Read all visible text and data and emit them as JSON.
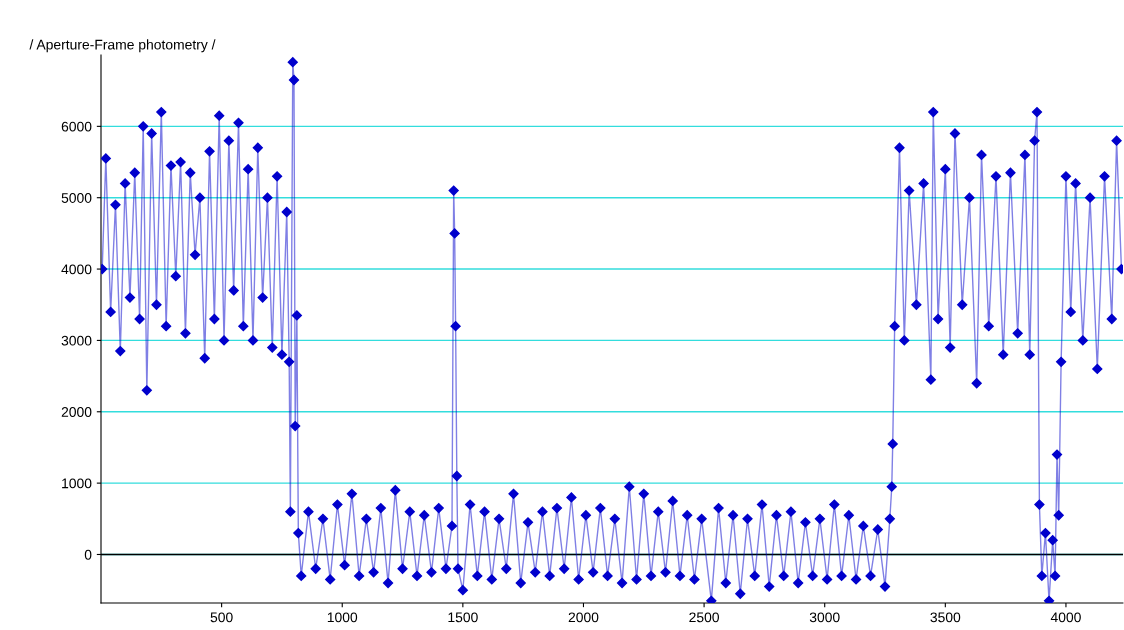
{
  "chart_data": {
    "type": "line",
    "title": "/ Aperture-Frame photometry /",
    "x": [
      5,
      20,
      40,
      60,
      80,
      100,
      120,
      140,
      160,
      175,
      190,
      210,
      230,
      250,
      270,
      290,
      310,
      330,
      350,
      370,
      390,
      410,
      430,
      450,
      470,
      490,
      510,
      530,
      550,
      570,
      590,
      610,
      630,
      650,
      670,
      690,
      710,
      730,
      750,
      770,
      780,
      785,
      795,
      800,
      805,
      812,
      818,
      830,
      860,
      890,
      920,
      950,
      980,
      1010,
      1040,
      1070,
      1100,
      1130,
      1160,
      1190,
      1220,
      1250,
      1280,
      1310,
      1340,
      1370,
      1400,
      1430,
      1455,
      1462,
      1466,
      1470,
      1475,
      1480,
      1500,
      1530,
      1560,
      1590,
      1620,
      1650,
      1680,
      1710,
      1740,
      1770,
      1800,
      1830,
      1860,
      1890,
      1920,
      1950,
      1980,
      2010,
      2040,
      2070,
      2100,
      2130,
      2160,
      2190,
      2220,
      2250,
      2280,
      2310,
      2340,
      2370,
      2400,
      2430,
      2460,
      2490,
      2530,
      2560,
      2590,
      2620,
      2650,
      2680,
      2710,
      2740,
      2770,
      2800,
      2830,
      2860,
      2890,
      2920,
      2950,
      2980,
      3010,
      3040,
      3070,
      3100,
      3130,
      3160,
      3190,
      3220,
      3250,
      3270,
      3278,
      3282,
      3290,
      3310,
      3330,
      3350,
      3380,
      3410,
      3440,
      3450,
      3470,
      3500,
      3520,
      3540,
      3570,
      3600,
      3630,
      3650,
      3680,
      3710,
      3740,
      3770,
      3800,
      3830,
      3850,
      3870,
      3880,
      3890,
      3900,
      3915,
      3930,
      3945,
      3955,
      3963,
      3970,
      3980,
      4000,
      4020,
      4040,
      4070,
      4100,
      4130,
      4160,
      4190,
      4210,
      4230
    ],
    "series": [
      {
        "color": "#0000cc",
        "values": [
          4000,
          5550,
          3400,
          4900,
          2850,
          5200,
          3600,
          5350,
          3300,
          6000,
          2300,
          5900,
          3500,
          6200,
          3200,
          5450,
          3900,
          5500,
          3100,
          5350,
          4200,
          5000,
          2750,
          5650,
          3300,
          6150,
          3000,
          5800,
          3700,
          6050,
          3200,
          5400,
          3000,
          5700,
          3600,
          5000,
          2900,
          5300,
          2800,
          4800,
          2700,
          600,
          6900,
          6650,
          1800,
          3350,
          300,
          -300,
          600,
          -200,
          500,
          -350,
          700,
          -150,
          850,
          -300,
          500,
          -250,
          650,
          -400,
          900,
          -200,
          600,
          -300,
          550,
          -250,
          650,
          -200,
          400,
          5100,
          4500,
          3200,
          1100,
          -200,
          -500,
          700,
          -300,
          600,
          -350,
          500,
          -200,
          850,
          -400,
          450,
          -250,
          600,
          -300,
          650,
          -200,
          800,
          -350,
          550,
          -250,
          650,
          -300,
          500,
          -400,
          950,
          -350,
          850,
          -300,
          600,
          -250,
          750,
          -300,
          550,
          -350,
          500,
          -650,
          650,
          -400,
          550,
          -550,
          500,
          -300,
          700,
          -450,
          550,
          -300,
          600,
          -400,
          450,
          -300,
          500,
          -350,
          700,
          -300,
          550,
          -350,
          400,
          -300,
          350,
          -450,
          500,
          950,
          1550,
          3200,
          5700,
          3000,
          5100,
          3500,
          5200,
          2450,
          6200,
          3300,
          5400,
          2900,
          5900,
          3500,
          5000,
          2400,
          5600,
          3200,
          5300,
          2800,
          5350,
          3100,
          5600,
          2800,
          5800,
          6200,
          700,
          -300,
          300,
          -650,
          200,
          -300,
          1400,
          550,
          2700,
          5300,
          3400,
          5200,
          3000,
          5000,
          2600,
          5300,
          3300,
          5800,
          4000
        ]
      }
    ],
    "xlim": [
      0,
      4236
    ],
    "ylim": [
      -680,
      7000
    ],
    "xticks": [
      500,
      1000,
      1500,
      2000,
      2500,
      3000,
      3500,
      4000
    ],
    "yticks": [
      0,
      1000,
      2000,
      3000,
      4000,
      5000,
      6000
    ],
    "grid": "y",
    "marker": "diamond",
    "line_style": "solid",
    "ref_lines": [
      {
        "axis": "y",
        "value": 0,
        "color": "#000000"
      }
    ]
  }
}
